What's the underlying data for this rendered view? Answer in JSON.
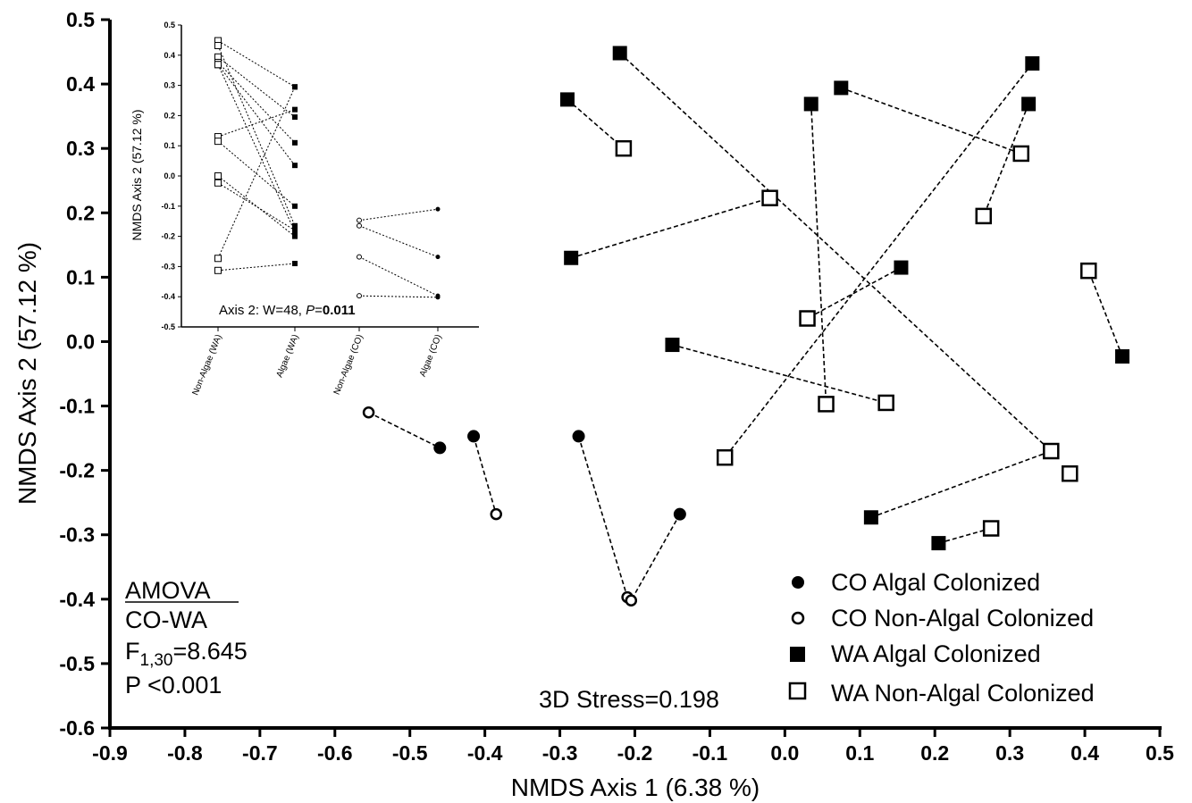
{
  "chart_data": [
    {
      "type": "scatter",
      "xlabel": "NMDS  Axis 1 (6.38 %)",
      "ylabel": "NMDS Axis 2 (57.12 %)",
      "xlim": [
        -0.9,
        0.5
      ],
      "ylim": [
        -0.6,
        0.5
      ],
      "x_ticks": [
        "-0.9",
        "-0.8",
        "-0.7",
        "-0.6",
        "-0.5",
        "-0.4",
        "-0.3",
        "-0.2",
        "-0.1",
        "0.0",
        "0.1",
        "0.2",
        "0.3",
        "0.4",
        "0.5"
      ],
      "y_ticks": [
        "0.5",
        "0.4",
        "0.3",
        "0.2",
        "0.1",
        "0.0",
        "-0.1",
        "-0.2",
        "-0.3",
        "-0.4",
        "-0.5",
        "-0.6"
      ],
      "grid": false,
      "legend_position": "bottom-right",
      "series": [
        {
          "name": "CO Algal Colonized",
          "marker": "filled-circle",
          "color": "#000000",
          "points": [
            [
              -0.46,
              -0.165
            ],
            [
              -0.415,
              -0.147
            ],
            [
              -0.275,
              -0.147
            ],
            [
              -0.14,
              -0.268
            ]
          ]
        },
        {
          "name": "CO Non-Algal Colonized",
          "marker": "open-circle",
          "color": "#000000",
          "points": [
            [
              -0.555,
              -0.11
            ],
            [
              -0.385,
              -0.268
            ],
            [
              -0.21,
              -0.397
            ],
            [
              -0.205,
              -0.402
            ]
          ]
        },
        {
          "name": "WA  Algal Colonized",
          "marker": "filled-square",
          "color": "#000000",
          "points": [
            [
              -0.29,
              0.376
            ],
            [
              -0.22,
              0.448
            ],
            [
              0.035,
              0.369
            ],
            [
              0.075,
              0.394
            ],
            [
              0.33,
              0.432
            ],
            [
              0.325,
              0.369
            ],
            [
              -0.285,
              0.13
            ],
            [
              0.155,
              0.115
            ],
            [
              -0.15,
              -0.005
            ],
            [
              0.45,
              -0.023
            ],
            [
              0.115,
              -0.273
            ],
            [
              0.205,
              -0.313
            ]
          ]
        },
        {
          "name": "WA Non-Algal Colonized",
          "marker": "open-square",
          "color": "#000000",
          "points": [
            [
              -0.215,
              0.3
            ],
            [
              -0.02,
              0.223
            ],
            [
              0.315,
              0.292
            ],
            [
              0.265,
              0.195
            ],
            [
              0.405,
              0.11
            ],
            [
              0.03,
              0.036
            ],
            [
              0.055,
              -0.097
            ],
            [
              0.135,
              -0.095
            ],
            [
              -0.08,
              -0.18
            ],
            [
              0.355,
              -0.17
            ],
            [
              0.38,
              -0.205
            ],
            [
              0.275,
              -0.29
            ]
          ]
        }
      ],
      "pairs": [
        [
          [
            -0.555,
            -0.11
          ],
          [
            -0.46,
            -0.165
          ]
        ],
        [
          [
            -0.415,
            -0.147
          ],
          [
            -0.385,
            -0.268
          ]
        ],
        [
          [
            -0.275,
            -0.147
          ],
          [
            -0.21,
            -0.397
          ]
        ],
        [
          [
            -0.14,
            -0.268
          ],
          [
            -0.205,
            -0.402
          ]
        ],
        [
          [
            -0.29,
            0.376
          ],
          [
            -0.215,
            0.3
          ]
        ],
        [
          [
            -0.22,
            0.448
          ],
          [
            0.355,
            -0.17
          ]
        ],
        [
          [
            0.035,
            0.369
          ],
          [
            0.055,
            -0.097
          ]
        ],
        [
          [
            0.075,
            0.394
          ],
          [
            0.315,
            0.292
          ]
        ],
        [
          [
            0.33,
            0.432
          ],
          [
            -0.08,
            -0.18
          ]
        ],
        [
          [
            0.325,
            0.369
          ],
          [
            0.265,
            0.195
          ]
        ],
        [
          [
            -0.285,
            0.13
          ],
          [
            -0.02,
            0.223
          ]
        ],
        [
          [
            0.155,
            0.115
          ],
          [
            0.03,
            0.036
          ]
        ],
        [
          [
            -0.15,
            -0.005
          ],
          [
            0.135,
            -0.095
          ]
        ],
        [
          [
            0.45,
            -0.023
          ],
          [
            0.405,
            0.11
          ]
        ],
        [
          [
            0.115,
            -0.273
          ],
          [
            0.355,
            -0.17
          ]
        ],
        [
          [
            0.205,
            -0.313
          ],
          [
            0.275,
            -0.29
          ]
        ]
      ],
      "annotations": {
        "amova_title": "AMOVA",
        "amova_groups": "CO-WA",
        "f_prefix": "F",
        "f_sub": "1,30",
        "f_value": "=8.645",
        "p_text": "P <0.001",
        "stress": "3D Stress=0.198"
      }
    },
    {
      "type": "line",
      "ylabel": "NMDS Axis 2 (57.12 %)",
      "ylim": [
        -0.5,
        0.5
      ],
      "y_ticks": [
        "0.5",
        "0.4",
        "0.3",
        "0.2",
        "0.1",
        "0.0",
        "-0.1",
        "-0.2",
        "-0.3",
        "-0.4",
        "-0.5"
      ],
      "categories": [
        "Non-Algae (WA)",
        "Algae (WA)",
        "Non-Algae (CO)",
        "Algae (CO)"
      ],
      "wa_pairs": [
        [
          0.448,
          0.295
        ],
        [
          0.432,
          -0.165
        ],
        [
          0.394,
          0.195
        ],
        [
          0.376,
          0.11
        ],
        [
          0.369,
          0.035
        ],
        [
          0.369,
          -0.185
        ],
        [
          0.13,
          0.22
        ],
        [
          0.115,
          -0.1
        ],
        [
          0.0,
          -0.2
        ],
        [
          -0.023,
          -0.18
        ],
        [
          -0.273,
          0.295
        ],
        [
          -0.313,
          -0.29
        ]
      ],
      "co_pairs": [
        [
          -0.147,
          -0.11
        ],
        [
          -0.165,
          -0.268
        ],
        [
          -0.268,
          -0.397
        ],
        [
          -0.397,
          -0.402
        ]
      ],
      "stat_prefix": "Axis 2: W=48, ",
      "stat_p_label": "P",
      "stat_eq": "=",
      "stat_p_value": "0.011"
    }
  ]
}
